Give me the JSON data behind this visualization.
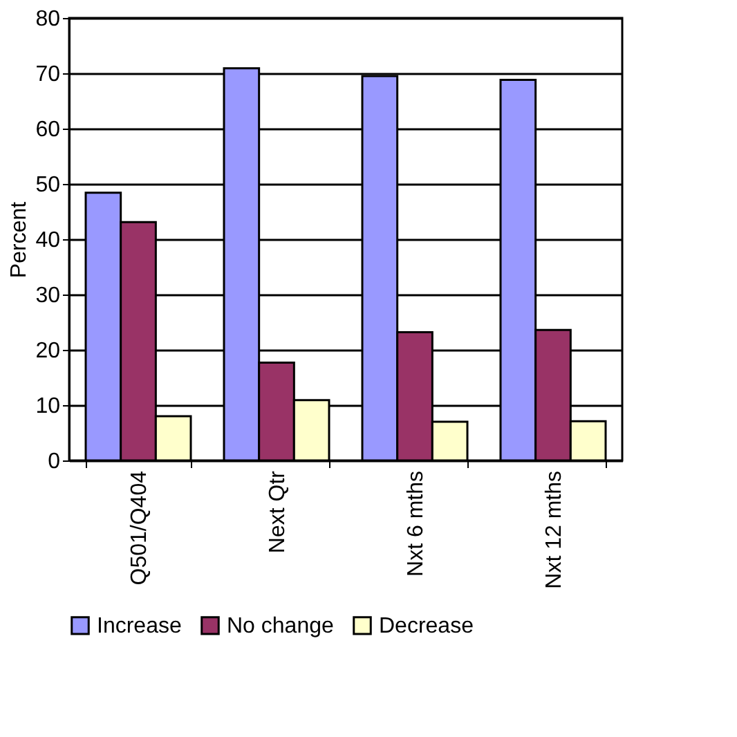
{
  "chart_data": {
    "type": "bar",
    "ylabel": "Percent",
    "categories": [
      "Q501/Q404",
      "Next Qtr",
      "Nxt 6 mths",
      "Nxt 12 mths"
    ],
    "series": [
      {
        "name": "Increase",
        "color": "#9999ff",
        "values": [
          48.4,
          70.9,
          69.5,
          68.8
        ]
      },
      {
        "name": "No change",
        "color": "#993366",
        "values": [
          43.1,
          17.7,
          23.2,
          23.6
        ]
      },
      {
        "name": "Decrease",
        "color": "#ffffcc",
        "values": [
          8.0,
          10.9,
          7.0,
          7.1
        ]
      }
    ],
    "ylim": [
      0,
      80
    ],
    "yticks": [
      0,
      10,
      20,
      30,
      40,
      50,
      60,
      70,
      80
    ],
    "grid": "y",
    "legend": "bottom"
  }
}
